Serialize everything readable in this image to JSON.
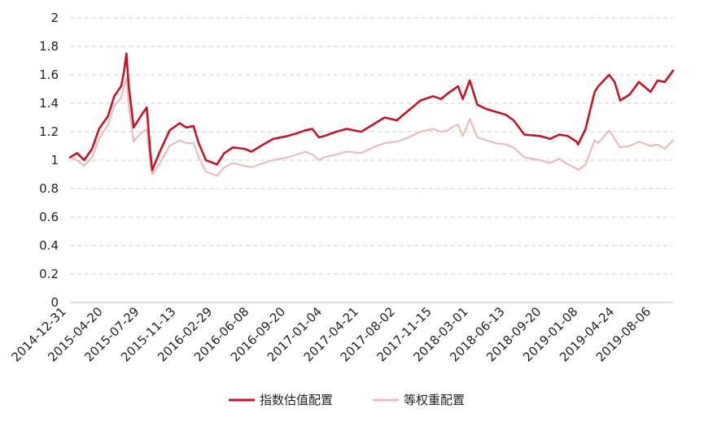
{
  "chart_data": {
    "type": "line",
    "title": "",
    "xlabel": "",
    "ylabel": "",
    "ylim": [
      0,
      2
    ],
    "y_ticks": [
      "0",
      "0.2",
      "0.4",
      "0.6",
      "0.8",
      "1",
      "1.2",
      "1.4",
      "1.6",
      "1.8",
      "2"
    ],
    "x_tick_labels": [
      "2014-12-31",
      "2015-04-20",
      "2015-07-29",
      "2015-11-13",
      "2016-02-29",
      "2016-06-08",
      "2016-09-20",
      "2017-01-04",
      "2017-04-21",
      "2017-08-02",
      "2017-11-15",
      "2018-03-01",
      "2018-06-13",
      "2018-09-20",
      "2019-01-08",
      "2019-04-24",
      "2019-08-06"
    ],
    "grid": "horizontal dashed",
    "legend_position": "bottom",
    "series": [
      {
        "name": "指数估值配置",
        "color": "#C0142B",
        "x": [
          "2014-12-31",
          "2015-01-21",
          "2015-02-10",
          "2015-03-05",
          "2015-03-25",
          "2015-04-20",
          "2015-05-08",
          "2015-05-28",
          "2015-06-05",
          "2015-06-12",
          "2015-06-19",
          "2015-07-03",
          "2015-07-08",
          "2015-07-29",
          "2015-08-10",
          "2015-08-20",
          "2015-08-26",
          "2015-09-15",
          "2015-10-15",
          "2015-11-13",
          "2015-12-02",
          "2015-12-23",
          "2016-01-07",
          "2016-01-28",
          "2016-02-29",
          "2016-03-21",
          "2016-04-15",
          "2016-05-18",
          "2016-06-08",
          "2016-07-12",
          "2016-08-10",
          "2016-09-20",
          "2016-10-18",
          "2016-11-10",
          "2016-12-01",
          "2016-12-20",
          "2017-01-04",
          "2017-02-08",
          "2017-03-10",
          "2017-04-21",
          "2017-05-25",
          "2017-06-28",
          "2017-08-02",
          "2017-09-05",
          "2017-10-10",
          "2017-11-15",
          "2017-12-08",
          "2017-12-28",
          "2018-01-15",
          "2018-01-26",
          "2018-02-09",
          "2018-03-01",
          "2018-03-23",
          "2018-04-18",
          "2018-05-15",
          "2018-06-13",
          "2018-07-06",
          "2018-08-06",
          "2018-09-20",
          "2018-10-19",
          "2018-11-15",
          "2018-12-10",
          "2019-01-04",
          "2019-01-08",
          "2019-01-30",
          "2019-02-25",
          "2019-03-08",
          "2019-04-08",
          "2019-04-24",
          "2019-05-10",
          "2019-06-06",
          "2019-07-03",
          "2019-08-06",
          "2019-08-26",
          "2019-09-16",
          "2019-10-10"
        ],
        "values": [
          1.02,
          1.05,
          1.0,
          1.08,
          1.22,
          1.31,
          1.45,
          1.52,
          1.62,
          1.75,
          1.52,
          1.23,
          1.25,
          1.33,
          1.37,
          1.06,
          0.93,
          1.05,
          1.21,
          1.26,
          1.23,
          1.24,
          1.12,
          1.0,
          0.97,
          1.05,
          1.09,
          1.08,
          1.06,
          1.11,
          1.15,
          1.17,
          1.19,
          1.21,
          1.22,
          1.16,
          1.17,
          1.2,
          1.22,
          1.2,
          1.25,
          1.3,
          1.28,
          1.35,
          1.42,
          1.45,
          1.43,
          1.47,
          1.5,
          1.52,
          1.43,
          1.56,
          1.39,
          1.36,
          1.34,
          1.32,
          1.28,
          1.18,
          1.17,
          1.15,
          1.18,
          1.17,
          1.13,
          1.11,
          1.22,
          1.48,
          1.52,
          1.6,
          1.55,
          1.42,
          1.46,
          1.55,
          1.48,
          1.56,
          1.55,
          1.63
        ]
      },
      {
        "name": "等权重配置",
        "color": "#EBBDBE",
        "x": [
          "2014-12-31",
          "2015-01-21",
          "2015-02-10",
          "2015-03-05",
          "2015-03-25",
          "2015-04-20",
          "2015-05-08",
          "2015-05-28",
          "2015-06-05",
          "2015-06-12",
          "2015-06-19",
          "2015-07-03",
          "2015-07-08",
          "2015-07-29",
          "2015-08-10",
          "2015-08-20",
          "2015-08-26",
          "2015-09-15",
          "2015-10-15",
          "2015-11-13",
          "2015-12-02",
          "2015-12-23",
          "2016-01-07",
          "2016-01-28",
          "2016-02-29",
          "2016-03-21",
          "2016-04-15",
          "2016-05-18",
          "2016-06-08",
          "2016-07-12",
          "2016-08-10",
          "2016-09-20",
          "2016-10-18",
          "2016-11-10",
          "2016-12-01",
          "2016-12-20",
          "2017-01-04",
          "2017-02-08",
          "2017-03-10",
          "2017-04-21",
          "2017-05-25",
          "2017-06-28",
          "2017-08-02",
          "2017-09-05",
          "2017-10-10",
          "2017-11-15",
          "2017-12-08",
          "2017-12-28",
          "2018-01-15",
          "2018-01-26",
          "2018-02-09",
          "2018-03-01",
          "2018-03-23",
          "2018-04-18",
          "2018-05-15",
          "2018-06-13",
          "2018-07-06",
          "2018-08-06",
          "2018-09-20",
          "2018-10-19",
          "2018-11-15",
          "2018-12-10",
          "2019-01-04",
          "2019-01-08",
          "2019-01-30",
          "2019-02-25",
          "2019-03-08",
          "2019-04-08",
          "2019-04-24",
          "2019-05-10",
          "2019-06-06",
          "2019-07-03",
          "2019-08-06",
          "2019-08-26",
          "2019-09-16",
          "2019-10-10"
        ],
        "values": [
          1.02,
          1.0,
          0.96,
          1.02,
          1.15,
          1.25,
          1.38,
          1.44,
          1.52,
          1.58,
          1.38,
          1.13,
          1.15,
          1.2,
          1.22,
          0.98,
          0.9,
          0.97,
          1.1,
          1.14,
          1.12,
          1.12,
          1.02,
          0.92,
          0.89,
          0.95,
          0.98,
          0.96,
          0.95,
          0.98,
          1.0,
          1.02,
          1.04,
          1.06,
          1.04,
          1.0,
          1.02,
          1.04,
          1.06,
          1.05,
          1.09,
          1.12,
          1.13,
          1.16,
          1.2,
          1.22,
          1.2,
          1.21,
          1.24,
          1.25,
          1.17,
          1.29,
          1.16,
          1.14,
          1.12,
          1.11,
          1.09,
          1.02,
          1.0,
          0.98,
          1.01,
          0.97,
          0.94,
          0.93,
          0.97,
          1.14,
          1.12,
          1.21,
          1.15,
          1.09,
          1.1,
          1.13,
          1.1,
          1.11,
          1.08,
          1.14
        ]
      }
    ]
  }
}
